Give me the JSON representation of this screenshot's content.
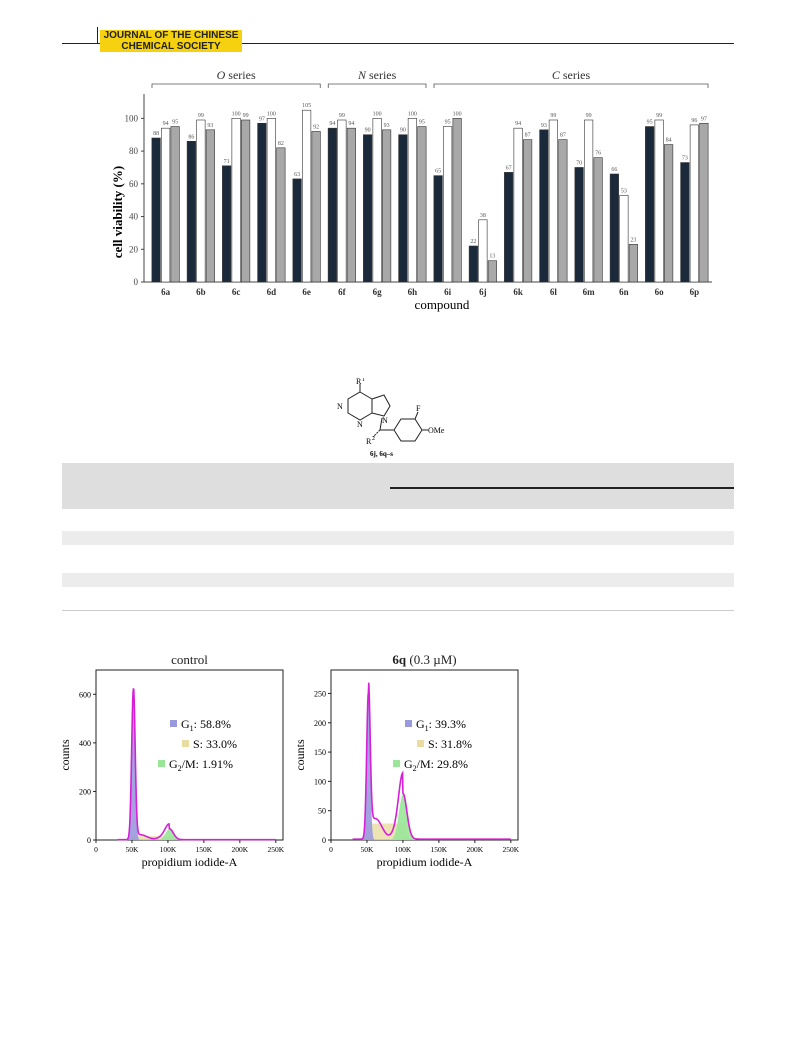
{
  "header": {
    "journal_line1": "JOURNAL OF THE CHINESE",
    "journal_line2": "CHEMICAL SOCIETY",
    "badge_color": "#f5d10f"
  },
  "chart_data": [
    {
      "type": "bar",
      "group_labels": [
        "O series",
        "N series",
        "C series"
      ],
      "groups": [
        {
          "label": "O series",
          "categories": [
            "6a",
            "6b",
            "6c",
            "6d",
            "6e"
          ]
        },
        {
          "label": "N series",
          "categories": [
            "6f",
            "6g",
            "6h"
          ]
        },
        {
          "label": "C series",
          "categories": [
            "6i",
            "6j",
            "6k",
            "6l",
            "6m",
            "6n",
            "6o",
            "6p"
          ]
        }
      ],
      "categories": [
        "6a",
        "6b",
        "6c",
        "6d",
        "6e",
        "6f",
        "6g",
        "6h",
        "6i",
        "6j",
        "6k",
        "6l",
        "6m",
        "6n",
        "6o",
        "6p"
      ],
      "series": [
        {
          "values": [
            88,
            86,
            71,
            97,
            63,
            94,
            90,
            90,
            65,
            22,
            67,
            93,
            70,
            66,
            95,
            73
          ],
          "color": "#1b2a3a"
        },
        {
          "values": [
            94,
            99,
            100,
            100,
            105,
            99,
            100,
            100,
            95,
            38,
            94,
            99,
            99,
            53,
            99,
            96
          ],
          "color": "#ffffff"
        },
        {
          "values": [
            95,
            93,
            99,
            82,
            92,
            94,
            93,
            95,
            100,
            13,
            87,
            87,
            76,
            23,
            84,
            97
          ],
          "color": "#a8a8a8"
        }
      ],
      "xlabel": "compound",
      "ylabel": "cell viability (%)",
      "yticks": [
        0,
        20,
        40,
        60,
        80,
        100
      ],
      "ylim": [
        0,
        110
      ],
      "grid": false
    },
    {
      "type": "area",
      "title": "control",
      "xlabel": "propidium iodide-A",
      "ylabel": "counts",
      "xticks": [
        "0",
        "50K",
        "100K",
        "150K",
        "200K",
        "250K"
      ],
      "yticks": [
        0,
        200,
        400,
        600
      ],
      "ylim": [
        0,
        700
      ],
      "peaks": [
        {
          "name": "G1",
          "x_k": 52,
          "height": 620
        },
        {
          "name": "G2/M",
          "x_k": 102,
          "height": 45
        }
      ],
      "legend": [
        {
          "label_main": "G",
          "label_sub": "1",
          "label_rest": ": 58.8%",
          "color": "#9999dd"
        },
        {
          "label_main": "",
          "label_sub": "",
          "label_rest": "S: 33.0%",
          "color": "#e8dca0"
        },
        {
          "label_main": "G",
          "label_sub": "2",
          "label_rest": "/M: 1.91%",
          "color": "#99e699"
        }
      ]
    },
    {
      "type": "area",
      "title_bold": "6q",
      "title_rest": " (0.3 µM)",
      "xlabel": "propidium iodide-A",
      "ylabel": "counts",
      "xticks": [
        "0",
        "50K",
        "100K",
        "150K",
        "200K",
        "250K"
      ],
      "yticks": [
        0,
        50,
        100,
        150,
        200,
        250
      ],
      "ylim": [
        0,
        290
      ],
      "peaks": [
        {
          "name": "G1",
          "x_k": 52,
          "height": 250
        },
        {
          "name": "G2/M",
          "x_k": 100,
          "height": 78
        }
      ],
      "legend": [
        {
          "label_main": "G",
          "label_sub": "1",
          "label_rest": ": 39.3%",
          "color": "#9999dd"
        },
        {
          "label_main": "",
          "label_sub": "",
          "label_rest": "S: 31.8%",
          "color": "#e8dca0"
        },
        {
          "label_main": "G",
          "label_sub": "2",
          "label_rest": "/M: 29.8%",
          "color": "#99e699"
        }
      ]
    }
  ],
  "structure": {
    "r1": "R",
    "r1_sup": "1",
    "r2": "R",
    "r2_sup": "2",
    "n1": "N",
    "n2": "N",
    "n3": "N",
    "f": "F",
    "ome": "OMe",
    "caption": "6j, 6q–s"
  }
}
